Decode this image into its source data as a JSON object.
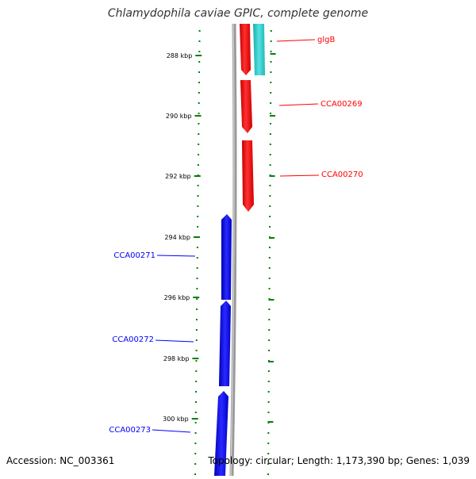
{
  "title": "Chlamydophila caviae GPIC, complete genome",
  "footer": {
    "accession_label": "Accession:",
    "accession": "NC_003361",
    "topology_label": "Topology:",
    "topology": "circular",
    "length_label": "Length:",
    "length": "1,173,390 bp",
    "genes_label": "Genes:",
    "genes": "1,039"
  },
  "colors": {
    "forward_gene": "#ff0000",
    "reverse_gene": "#0000ff",
    "feature": "#33cccc",
    "tick": "#008000",
    "backbone": "#888888"
  },
  "scale_labels": [
    "288 kbp",
    "290 kbp",
    "292 kbp",
    "294 kbp",
    "296 kbp",
    "298 kbp",
    "300 kbp"
  ],
  "genes": [
    {
      "name": "glgB",
      "strand": "forward",
      "color": "#ff0000"
    },
    {
      "name": "CCA00269",
      "strand": "forward",
      "color": "#ff0000"
    },
    {
      "name": "CCA00270",
      "strand": "forward",
      "color": "#ff0000"
    },
    {
      "name": "CCA00271",
      "strand": "reverse",
      "color": "#0000ff"
    },
    {
      "name": "CCA00272",
      "strand": "reverse",
      "color": "#0000ff"
    },
    {
      "name": "CCA00273",
      "strand": "reverse",
      "color": "#0000ff"
    }
  ]
}
